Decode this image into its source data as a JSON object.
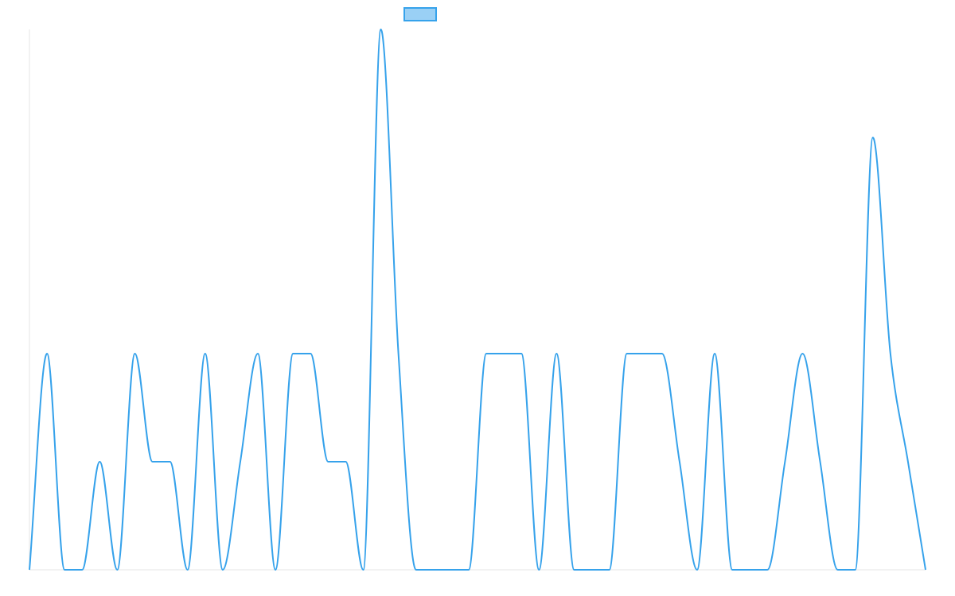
{
  "chart_data": {
    "type": "line",
    "title": "",
    "xlabel": "",
    "ylabel": "",
    "ylim": [
      0,
      3
    ],
    "grid": false,
    "legend": {
      "position": "top-center",
      "entries": [
        ""
      ]
    },
    "x": [
      0,
      1,
      2,
      3,
      4,
      5,
      6,
      7,
      8,
      9,
      10,
      11,
      12,
      13,
      14,
      15,
      16,
      17,
      18,
      19,
      20,
      21,
      22,
      23,
      24,
      25,
      26,
      27,
      28,
      29,
      30,
      31,
      32,
      33,
      34,
      35,
      36,
      37,
      38,
      39,
      40,
      41,
      42,
      43,
      44,
      45,
      46,
      47,
      48,
      49,
      50,
      51
    ],
    "series": [
      {
        "name": "",
        "color": "#36a2eb",
        "fill_color": "#9ad0f5",
        "values": [
          0,
          1.2,
          0,
          0,
          0.6,
          0,
          1.2,
          0.6,
          0.6,
          0,
          1.2,
          0,
          0.6,
          1.2,
          0,
          1.2,
          1.2,
          0.6,
          0.6,
          0,
          3,
          1.2,
          0,
          0,
          0,
          0,
          1.2,
          1.2,
          1.2,
          0,
          1.2,
          0,
          0,
          0,
          1.2,
          1.2,
          1.2,
          0.6,
          0,
          1.2,
          0,
          0,
          0,
          0.6,
          1.2,
          0.6,
          0,
          0,
          2.4,
          1.2,
          0.6,
          0
        ]
      }
    ]
  }
}
